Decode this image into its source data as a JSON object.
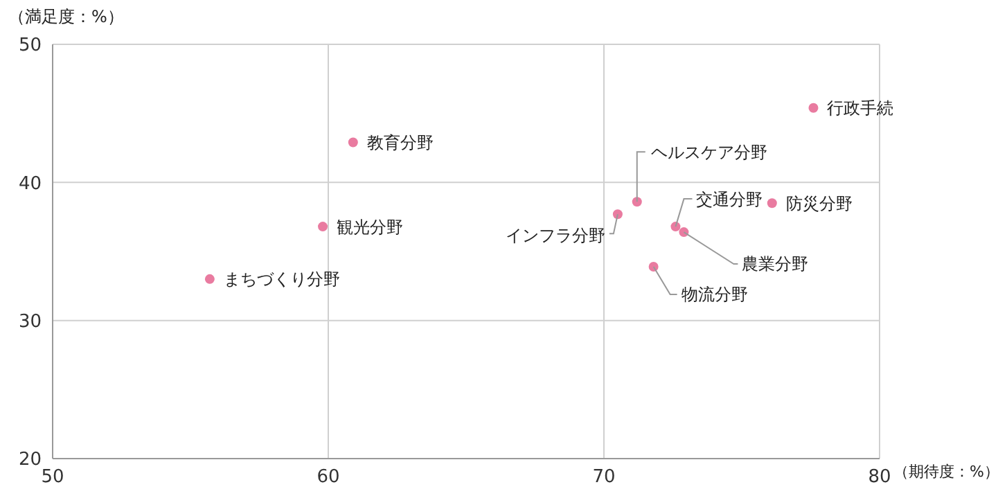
{
  "chart_data": {
    "type": "scatter",
    "xlabel": "（期待度：%）",
    "ylabel": "（満足度：%）",
    "x": [
      77.6,
      71.2,
      70.5,
      72.6,
      72.9,
      76.1,
      71.8,
      60.9,
      59.8,
      55.7
    ],
    "series": [
      {
        "color": "#e97ba0",
        "values": [
          45.4,
          38.6,
          37.7,
          36.8,
          36.4,
          38.5,
          33.9,
          42.9,
          36.8,
          33.0
        ]
      }
    ],
    "annotations": [
      {
        "text": "行政手続",
        "x": 77.6,
        "y": 45.4
      },
      {
        "text": "ヘルスケア分野",
        "x": 71.2,
        "y": 38.6
      },
      {
        "text": "インフラ分野",
        "x": 70.5,
        "y": 37.7
      },
      {
        "text": "交通分野",
        "x": 72.6,
        "y": 36.8
      },
      {
        "text": "農業分野",
        "x": 72.9,
        "y": 36.4
      },
      {
        "text": "防災分野",
        "x": 76.1,
        "y": 38.5
      },
      {
        "text": "物流分野",
        "x": 71.8,
        "y": 33.9
      },
      {
        "text": "教育分野",
        "x": 60.9,
        "y": 42.9
      },
      {
        "text": "観光分野",
        "x": 59.8,
        "y": 36.8
      },
      {
        "text": "まちづくり分野",
        "x": 55.7,
        "y": 33.0
      }
    ],
    "xlim": [
      50,
      80
    ],
    "xticks": [
      50,
      60,
      70,
      80
    ],
    "ylim": [
      20,
      50
    ],
    "yticks": [
      20,
      30,
      40,
      50
    ],
    "grid": true,
    "marker": "circle"
  }
}
